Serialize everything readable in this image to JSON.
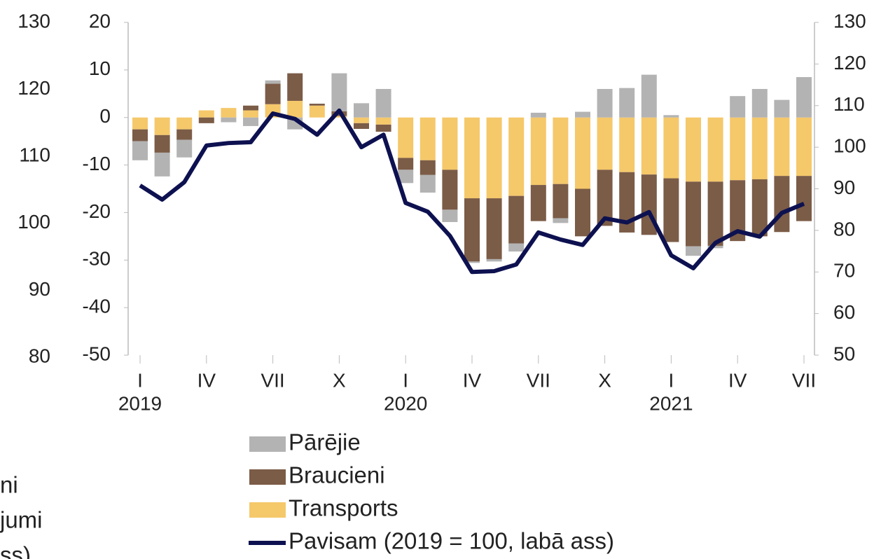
{
  "chart_data": [
    {
      "type": "bar",
      "categories": [
        "I",
        null,
        null,
        "IV",
        null,
        null,
        "VII",
        null,
        null,
        "X",
        null,
        null,
        "I",
        null,
        null,
        "IV",
        null,
        null,
        "VII",
        null,
        null,
        "X",
        null,
        null,
        "I",
        null,
        null,
        "IV",
        null,
        null,
        "VII"
      ],
      "years": [
        "2019",
        "2020",
        "2021"
      ],
      "stacked": true,
      "series": [
        {
          "name": "Transports",
          "color": "#f5c86a",
          "values": [
            -2.5,
            -3.7,
            -2.5,
            1.5,
            2,
            1.5,
            2.8,
            3.5,
            2.5,
            0.3,
            -1.2,
            -1.5,
            -8.5,
            -9,
            -11,
            -17,
            -17,
            -16.5,
            -14.2,
            -14,
            -15,
            -11,
            -11.5,
            -12,
            -12.8,
            -13.5,
            -13.5,
            -13.2,
            -13,
            -12.3,
            -12.3
          ]
        },
        {
          "name": "Braucieni",
          "color": "#7b5c47",
          "values": [
            -2.5,
            -3.7,
            -2.2,
            -1.2,
            0,
            1,
            4.3,
            5.8,
            0.4,
            1,
            -1.2,
            -1.5,
            -2.5,
            -3.1,
            -8.4,
            -13.3,
            -12.8,
            -10,
            -7.6,
            -7.2,
            -10,
            -11.8,
            -12.7,
            -12.7,
            -13.4,
            -13.6,
            -13.5,
            -12.8,
            -12,
            -11.8,
            -9.5
          ]
        },
        {
          "name": "Pārējie",
          "color": "#b3b3b3",
          "values": [
            -4,
            -5,
            -3.7,
            0,
            -1,
            -1.8,
            0.7,
            -2.5,
            0,
            8,
            3,
            6,
            -2.8,
            -3.7,
            -2.6,
            -0.3,
            -0.5,
            -1.7,
            1,
            -1,
            1.2,
            6,
            6.2,
            9,
            0.5,
            -2,
            -0.5,
            4.5,
            6,
            3.7,
            8.5
          ]
        },
        {
          "name": "Pavisam (2019 = 100, labā ass)",
          "color": "#0d1150",
          "type": "line",
          "axis": "y2",
          "values": [
            90.8,
            87.4,
            91.6,
            100.4,
            101,
            101.2,
            108.1,
            106.8,
            103,
            108.8,
            100,
            103,
            86.6,
            84.5,
            78.7,
            70,
            70.2,
            71.8,
            79.5,
            77.8,
            76.5,
            82.9,
            81.9,
            84.4,
            74,
            70.9,
            77,
            79.8,
            78.5,
            84.2,
            86.4
          ]
        }
      ],
      "legend_order": [
        "Pārējie",
        "Braucieni",
        "Transports",
        "Pavisam (2019 = 100, labā ass)"
      ],
      "ylim": [
        -50,
        20
      ],
      "yticks": [
        -50,
        -40,
        -30,
        -20,
        -10,
        0,
        10,
        20
      ],
      "y2lim": [
        50,
        130
      ],
      "y2ticks": [
        50,
        60,
        70,
        80,
        90,
        100,
        110,
        120,
        130
      ]
    },
    {
      "type": "axis-fragment",
      "ylim": [
        80,
        130
      ],
      "yticks": [
        80,
        90,
        100,
        110,
        120,
        130
      ],
      "legend_fragments": [
        "ni",
        "jumi",
        "ss)"
      ]
    }
  ]
}
